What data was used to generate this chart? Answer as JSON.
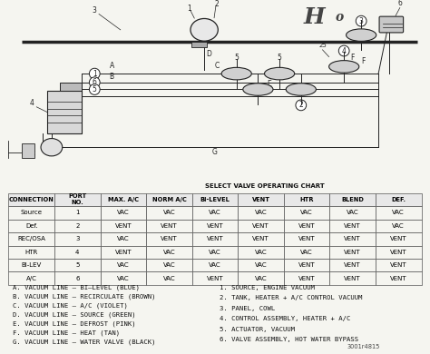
{
  "bg_color": "#f5f5f0",
  "lc": "#222222",
  "table_title": "SELECT VALVE OPERATING CHART",
  "col_headers": [
    "CONNECTION",
    "PORT\nNO.",
    "MAX. A/C",
    "NORM A/C",
    "BI-LEVEL",
    "VENT",
    "HTR",
    "BLEND",
    "DEF."
  ],
  "table_data": [
    [
      "Source",
      "1",
      "VAC",
      "VAC",
      "VAC",
      "VAC",
      "VAC",
      "VAC",
      "VAC"
    ],
    [
      "Def.",
      "2",
      "VENT",
      "VENT",
      "VENT",
      "VENT",
      "VENT",
      "VENT",
      "VAC"
    ],
    [
      "REC/OSA",
      "3",
      "VAC",
      "VENT",
      "VENT",
      "VENT",
      "VENT",
      "VENT",
      "VENT"
    ],
    [
      "HTR",
      "4",
      "VENT",
      "VAC",
      "VAC",
      "VAC",
      "VAC",
      "VENT",
      "VENT"
    ],
    [
      "BI-LEV",
      "5",
      "VAC",
      "VAC",
      "VAC",
      "VAC",
      "VENT",
      "VENT",
      "VENT"
    ],
    [
      "A/C",
      "6",
      "VAC",
      "VAC",
      "VENT",
      "VAC",
      "VENT",
      "VENT",
      "VENT"
    ]
  ],
  "legend_left": [
    "A. VACUUM LINE – BI–LEVEL (BLUE)",
    "B. VACUUM LINE – RECIRCULATE (BROWN)",
    "C. VACUUM LINE – A/C (VIOLET)",
    "D. VACUUM LINE – SOURCE (GREEN)",
    "E. VACUUM LINE – DEFROST (PINK)",
    "F. VACUUM LINE – HEAT (TAN)",
    "G. VACUUM LINE – WATER VALVE (BLACK)"
  ],
  "legend_right": [
    "1. SOURCE, ENGINE VACUUM",
    "2. TANK, HEATER + A/C CONTROL VACUUM",
    "3. PANEL, COWL",
    "4. CONTROL ASSEMBLY, HEATER + A/C",
    "5. ACTUATOR, VACUUM",
    "6. VALVE ASSEMBLY, HOT WATER BYPASS"
  ],
  "part_number": "3001r4815",
  "font_size_table": 5.0,
  "font_size_legend": 5.2
}
